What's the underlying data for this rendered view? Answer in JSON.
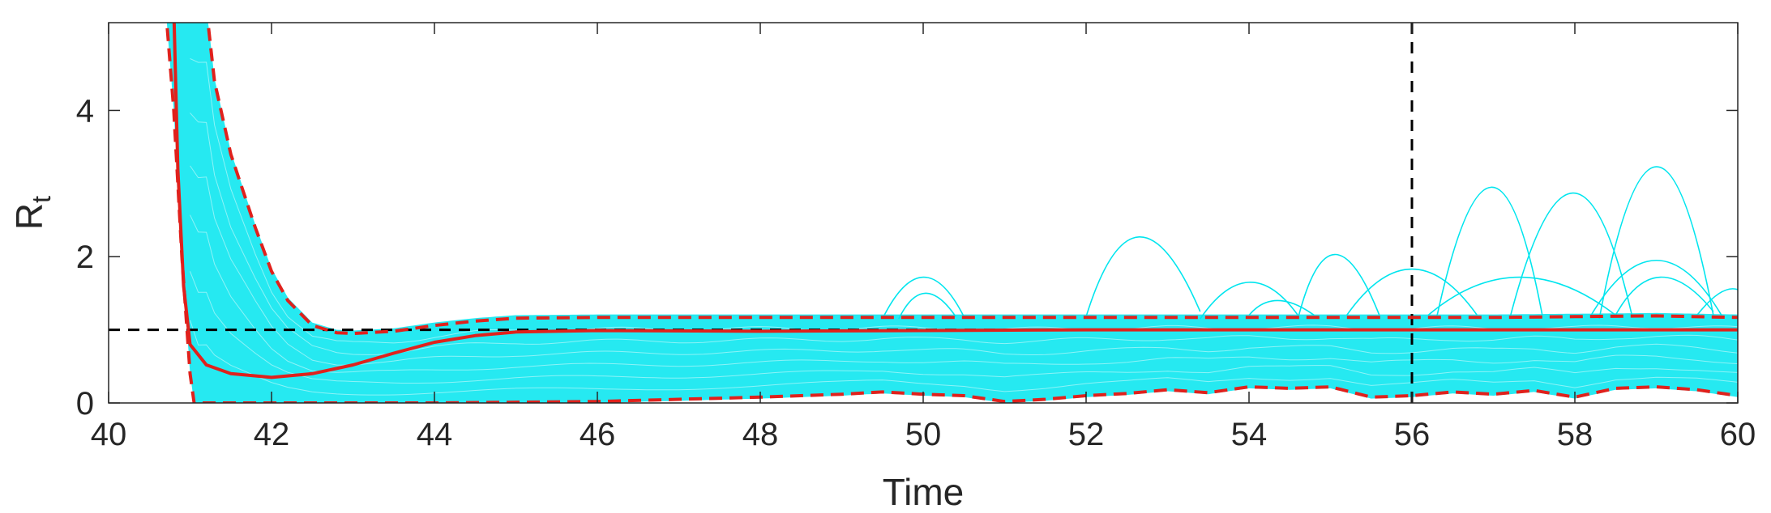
{
  "chart_data": {
    "type": "line",
    "title": "",
    "xlabel": "Time",
    "ylabel": "R",
    "ylabel_subscript": "t",
    "xlim": [
      40,
      60
    ],
    "ylim": [
      0,
      5.2
    ],
    "xticks": [
      40,
      42,
      44,
      46,
      48,
      50,
      52,
      54,
      56,
      58,
      60
    ],
    "yticks": [
      0,
      2,
      4
    ],
    "grid": false,
    "legend": "none",
    "colors": {
      "samples": "#00e5ee",
      "mean": "#e0211c",
      "bounds": "#e0211c",
      "reference": "#000000",
      "axis": "#262626"
    },
    "reference_lines": {
      "horizontal_y": 1,
      "vertical_x": 56
    },
    "series": [
      {
        "role": "mean",
        "style": "solid",
        "points": [
          [
            40.8,
            5.4
          ],
          [
            40.85,
            3.2
          ],
          [
            40.92,
            1.6
          ],
          [
            41.0,
            0.8
          ],
          [
            41.2,
            0.52
          ],
          [
            41.5,
            0.4
          ],
          [
            42.0,
            0.35
          ],
          [
            42.5,
            0.4
          ],
          [
            43.0,
            0.52
          ],
          [
            43.5,
            0.68
          ],
          [
            44.0,
            0.83
          ],
          [
            44.5,
            0.92
          ],
          [
            45.0,
            0.97
          ],
          [
            46.0,
            0.99
          ],
          [
            48.0,
            0.98
          ],
          [
            50.0,
            0.99
          ],
          [
            52.0,
            1.0
          ],
          [
            56.0,
            1.0
          ],
          [
            60.0,
            1.0
          ]
        ]
      },
      {
        "role": "upper-bound",
        "style": "dashed",
        "points": [
          [
            41.2,
            5.4
          ],
          [
            41.3,
            4.4
          ],
          [
            41.5,
            3.4
          ],
          [
            41.8,
            2.4
          ],
          [
            42.0,
            1.8
          ],
          [
            42.2,
            1.4
          ],
          [
            42.5,
            1.06
          ],
          [
            42.8,
            0.96
          ],
          [
            43.0,
            0.95
          ],
          [
            43.5,
            0.98
          ],
          [
            44.0,
            1.06
          ],
          [
            44.5,
            1.12
          ],
          [
            45.0,
            1.16
          ],
          [
            46.0,
            1.17
          ],
          [
            50.0,
            1.17
          ],
          [
            56.0,
            1.17
          ],
          [
            57.0,
            1.17
          ],
          [
            58.0,
            1.18
          ],
          [
            59.0,
            1.19
          ],
          [
            60.0,
            1.17
          ]
        ]
      },
      {
        "role": "lower-bound",
        "style": "dashed",
        "points": [
          [
            40.7,
            5.4
          ],
          [
            40.8,
            4.0
          ],
          [
            40.9,
            2.0
          ],
          [
            41.0,
            0.4
          ],
          [
            41.05,
            0.0
          ],
          [
            44.0,
            0.0
          ],
          [
            46.0,
            0.02
          ],
          [
            47.0,
            0.05
          ],
          [
            48.0,
            0.08
          ],
          [
            49.0,
            0.12
          ],
          [
            49.5,
            0.15
          ],
          [
            50.0,
            0.12
          ],
          [
            50.5,
            0.1
          ],
          [
            51.0,
            0.02
          ],
          [
            51.5,
            0.05
          ],
          [
            52.0,
            0.1
          ],
          [
            52.5,
            0.13
          ],
          [
            53.0,
            0.18
          ],
          [
            53.5,
            0.14
          ],
          [
            54.0,
            0.22
          ],
          [
            54.5,
            0.2
          ],
          [
            55.0,
            0.22
          ],
          [
            55.5,
            0.08
          ],
          [
            56.0,
            0.1
          ],
          [
            56.5,
            0.15
          ],
          [
            57.0,
            0.12
          ],
          [
            57.5,
            0.17
          ],
          [
            58.0,
            0.08
          ],
          [
            58.5,
            0.2
          ],
          [
            59.0,
            0.22
          ],
          [
            59.5,
            0.18
          ],
          [
            60.0,
            0.1
          ]
        ]
      },
      {
        "role": "sample-spike",
        "style": "thin",
        "points": [
          [
            49.5,
            1.15
          ],
          [
            50.0,
            1.72
          ],
          [
            50.5,
            1.18
          ]
        ]
      },
      {
        "role": "sample-spike",
        "style": "thin",
        "points": [
          [
            49.7,
            1.15
          ],
          [
            50.0,
            1.5
          ],
          [
            50.4,
            1.18
          ]
        ]
      },
      {
        "role": "sample-spike",
        "style": "thin",
        "points": [
          [
            52.0,
            1.18
          ],
          [
            52.6,
            2.27
          ],
          [
            53.4,
            1.25
          ]
        ]
      },
      {
        "role": "sample-spike",
        "style": "thin",
        "points": [
          [
            53.4,
            1.15
          ],
          [
            54.0,
            1.65
          ],
          [
            54.6,
            1.2
          ]
        ]
      },
      {
        "role": "sample-spike",
        "style": "thin",
        "points": [
          [
            54.0,
            1.2
          ],
          [
            54.3,
            1.4
          ],
          [
            54.8,
            1.2
          ]
        ]
      },
      {
        "role": "sample-spike",
        "style": "thin",
        "points": [
          [
            54.6,
            1.15
          ],
          [
            55.0,
            2.03
          ],
          [
            55.6,
            1.2
          ]
        ]
      },
      {
        "role": "sample-spike",
        "style": "thin",
        "points": [
          [
            55.2,
            1.2
          ],
          [
            56.0,
            1.83
          ],
          [
            56.8,
            1.2
          ]
        ]
      },
      {
        "role": "sample-spike",
        "style": "thin",
        "points": [
          [
            56.3,
            1.15
          ],
          [
            57.0,
            2.95
          ],
          [
            57.6,
            1.2
          ]
        ]
      },
      {
        "role": "sample-spike",
        "style": "thin",
        "points": [
          [
            57.2,
            1.15
          ],
          [
            58.0,
            2.87
          ],
          [
            58.7,
            1.2
          ]
        ]
      },
      {
        "role": "sample-spike",
        "style": "thin",
        "points": [
          [
            56.2,
            1.2
          ],
          [
            57.3,
            1.72
          ],
          [
            58.5,
            1.2
          ]
        ]
      },
      {
        "role": "sample-spike",
        "style": "thin",
        "points": [
          [
            58.3,
            1.15
          ],
          [
            59.0,
            3.23
          ],
          [
            59.7,
            1.2
          ]
        ]
      },
      {
        "role": "sample-spike",
        "style": "thin",
        "points": [
          [
            58.2,
            1.2
          ],
          [
            59.0,
            1.95
          ],
          [
            59.8,
            1.2
          ]
        ]
      },
      {
        "role": "sample-spike",
        "style": "thin",
        "points": [
          [
            58.5,
            1.2
          ],
          [
            59.0,
            1.72
          ],
          [
            59.7,
            1.25
          ]
        ]
      },
      {
        "role": "sample-spike",
        "style": "thin",
        "points": [
          [
            59.5,
            1.2
          ],
          [
            59.8,
            1.5
          ],
          [
            60.0,
            1.55
          ]
        ]
      }
    ]
  }
}
